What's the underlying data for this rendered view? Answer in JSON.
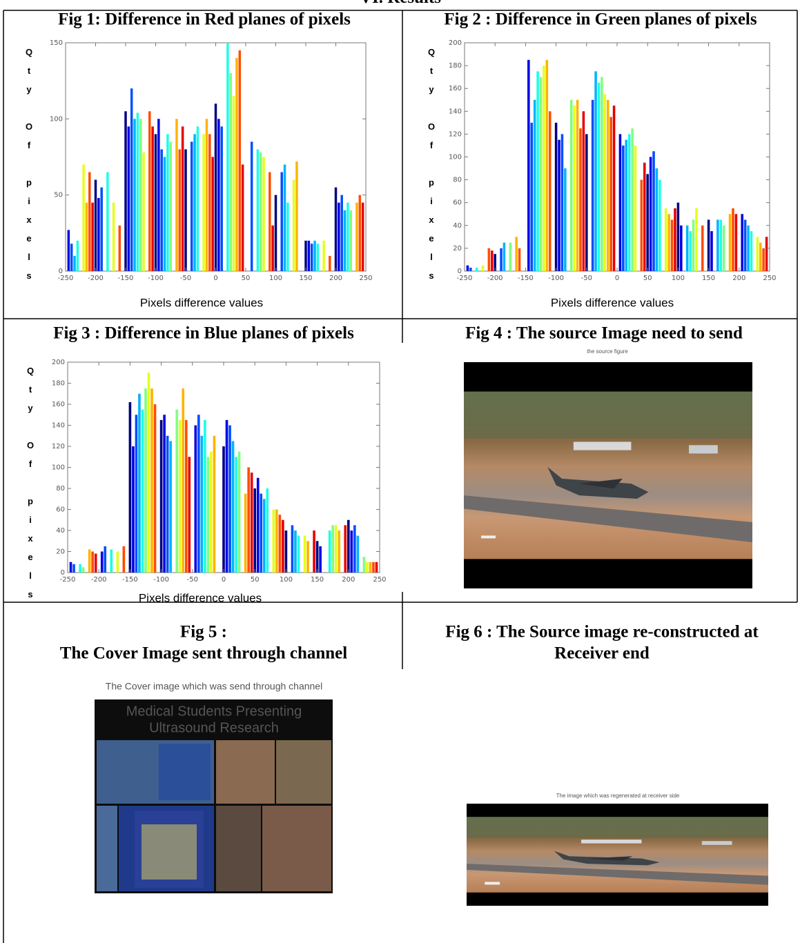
{
  "header": {
    "title": "VI.      Results"
  },
  "chart_data": [
    {
      "type": "bar",
      "title": "Fig 1: Difference in Red planes of pixels",
      "y_label": "Qty Of pixels",
      "x_label": "Pixels  difference values",
      "colormap": "jet",
      "x": [
        -245,
        -240,
        -235,
        -230,
        -220,
        -215,
        -210,
        -205,
        -200,
        -195,
        -190,
        -180,
        -170,
        -160,
        -150,
        -145,
        -140,
        -135,
        -130,
        -125,
        -120,
        -110,
        -105,
        -100,
        -95,
        -90,
        -85,
        -80,
        -75,
        -65,
        -60,
        -55,
        -50,
        -40,
        -35,
        -30,
        -20,
        -15,
        -10,
        -5,
        0,
        5,
        10,
        20,
        25,
        30,
        35,
        40,
        45,
        60,
        70,
        75,
        80,
        90,
        95,
        100,
        110,
        115,
        120,
        130,
        135,
        150,
        155,
        160,
        165,
        170,
        180,
        190,
        200,
        205,
        210,
        215,
        220,
        225,
        235,
        240,
        245
      ],
      "values": [
        27,
        18,
        10,
        20,
        70,
        45,
        65,
        45,
        60,
        48,
        55,
        65,
        45,
        30,
        105,
        95,
        120,
        100,
        104,
        100,
        78,
        105,
        95,
        90,
        100,
        80,
        75,
        90,
        85,
        100,
        80,
        95,
        80,
        85,
        90,
        95,
        90,
        100,
        90,
        75,
        110,
        100,
        95,
        150,
        130,
        115,
        140,
        145,
        70,
        85,
        80,
        78,
        75,
        65,
        30,
        50,
        65,
        70,
        45,
        60,
        72,
        20,
        20,
        18,
        20,
        18,
        20,
        10,
        55,
        45,
        50,
        40,
        45,
        40,
        45,
        50,
        45
      ],
      "xlim": [
        -250,
        250
      ],
      "xticks": [
        -250,
        -200,
        -150,
        -100,
        -50,
        0,
        50,
        100,
        150,
        200,
        250
      ],
      "ylim": [
        0,
        150
      ],
      "yticks": [
        0,
        50,
        100,
        150
      ]
    },
    {
      "type": "bar",
      "title": "Fig 2 : Difference in Green planes of pixels",
      "y_label": "Qty Of pixels",
      "x_label": "Pixels  difference values",
      "colormap": "jet",
      "x": [
        -245,
        -240,
        -230,
        -220,
        -210,
        -205,
        -200,
        -190,
        -185,
        -175,
        -165,
        -160,
        -145,
        -140,
        -135,
        -130,
        -125,
        -120,
        -115,
        -110,
        -100,
        -95,
        -90,
        -85,
        -75,
        -70,
        -65,
        -60,
        -55,
        -50,
        -40,
        -35,
        -30,
        -25,
        -20,
        -15,
        -10,
        -5,
        5,
        10,
        15,
        20,
        25,
        30,
        40,
        45,
        50,
        55,
        60,
        65,
        70,
        80,
        85,
        90,
        95,
        100,
        105,
        115,
        120,
        125,
        130,
        140,
        150,
        155,
        165,
        170,
        175,
        185,
        190,
        195,
        205,
        210,
        215,
        220,
        230,
        235,
        240,
        245
      ],
      "values": [
        5,
        3,
        3,
        5,
        20,
        18,
        15,
        20,
        25,
        25,
        30,
        20,
        185,
        130,
        150,
        175,
        170,
        180,
        185,
        140,
        130,
        115,
        120,
        90,
        150,
        145,
        150,
        125,
        140,
        120,
        150,
        175,
        165,
        170,
        155,
        150,
        135,
        145,
        120,
        110,
        115,
        120,
        125,
        110,
        80,
        95,
        85,
        100,
        105,
        90,
        80,
        55,
        50,
        45,
        55,
        60,
        40,
        40,
        35,
        45,
        55,
        40,
        45,
        35,
        45,
        45,
        40,
        50,
        55,
        50,
        50,
        45,
        40,
        35,
        30,
        25,
        20,
        30
      ],
      "xlim": [
        -250,
        250
      ],
      "xticks": [
        -250,
        -200,
        -150,
        -100,
        -50,
        0,
        50,
        100,
        150,
        200,
        250
      ],
      "ylim": [
        0,
        200
      ],
      "yticks": [
        0,
        20,
        40,
        60,
        80,
        100,
        120,
        140,
        160,
        180,
        200
      ]
    },
    {
      "type": "bar",
      "title": "Fig 3 : Difference in Blue planes of pixels",
      "y_label": "Qty Of pixels",
      "x_label": "Pixels  difference values",
      "colormap": "jet",
      "x": [
        -245,
        -240,
        -230,
        -225,
        -215,
        -210,
        -205,
        -195,
        -190,
        -180,
        -170,
        -160,
        -150,
        -145,
        -140,
        -135,
        -130,
        -125,
        -120,
        -115,
        -110,
        -100,
        -95,
        -90,
        -85,
        -75,
        -70,
        -65,
        -60,
        -55,
        -45,
        -40,
        -35,
        -30,
        -25,
        -20,
        -15,
        0,
        5,
        10,
        15,
        20,
        25,
        35,
        40,
        45,
        50,
        55,
        60,
        65,
        70,
        80,
        85,
        90,
        95,
        100,
        110,
        115,
        120,
        130,
        135,
        145,
        150,
        155,
        170,
        175,
        180,
        185,
        195,
        200,
        205,
        210,
        215,
        225,
        230,
        235,
        240,
        245
      ],
      "values": [
        10,
        8,
        8,
        5,
        22,
        20,
        18,
        20,
        25,
        22,
        20,
        25,
        162,
        120,
        150,
        170,
        155,
        175,
        190,
        175,
        160,
        145,
        150,
        130,
        125,
        155,
        145,
        175,
        145,
        110,
        140,
        150,
        130,
        145,
        110,
        115,
        130,
        120,
        145,
        140,
        125,
        110,
        115,
        75,
        100,
        95,
        80,
        90,
        75,
        70,
        80,
        60,
        60,
        55,
        50,
        40,
        45,
        40,
        35,
        35,
        30,
        40,
        30,
        25,
        40,
        45,
        45,
        40,
        45,
        50,
        40,
        45,
        35,
        15,
        10,
        10,
        10,
        10
      ],
      "xlim": [
        -250,
        250
      ],
      "xticks": [
        -250,
        -200,
        -150,
        -100,
        -50,
        0,
        50,
        100,
        150,
        200,
        250
      ],
      "ylim": [
        0,
        200
      ],
      "yticks": [
        0,
        20,
        40,
        60,
        80,
        100,
        120,
        140,
        160,
        180,
        200
      ]
    }
  ],
  "figures": [
    {
      "caption": [
        "Fig 4 :  The source Image need to send"
      ],
      "image_title": "the source figure"
    },
    {
      "caption": [
        "Fig 5  :",
        "The Cover Image sent through channel"
      ],
      "image_title": "The Cover image which was send through channel",
      "image_text": [
        "Medical Students Presenting",
        "Ultrasound Research"
      ]
    },
    {
      "caption": [
        "Fig 6  : The Source image re-constructed at",
        "Receiver end"
      ],
      "image_title": "The image which was regenerated at receiver side"
    }
  ]
}
